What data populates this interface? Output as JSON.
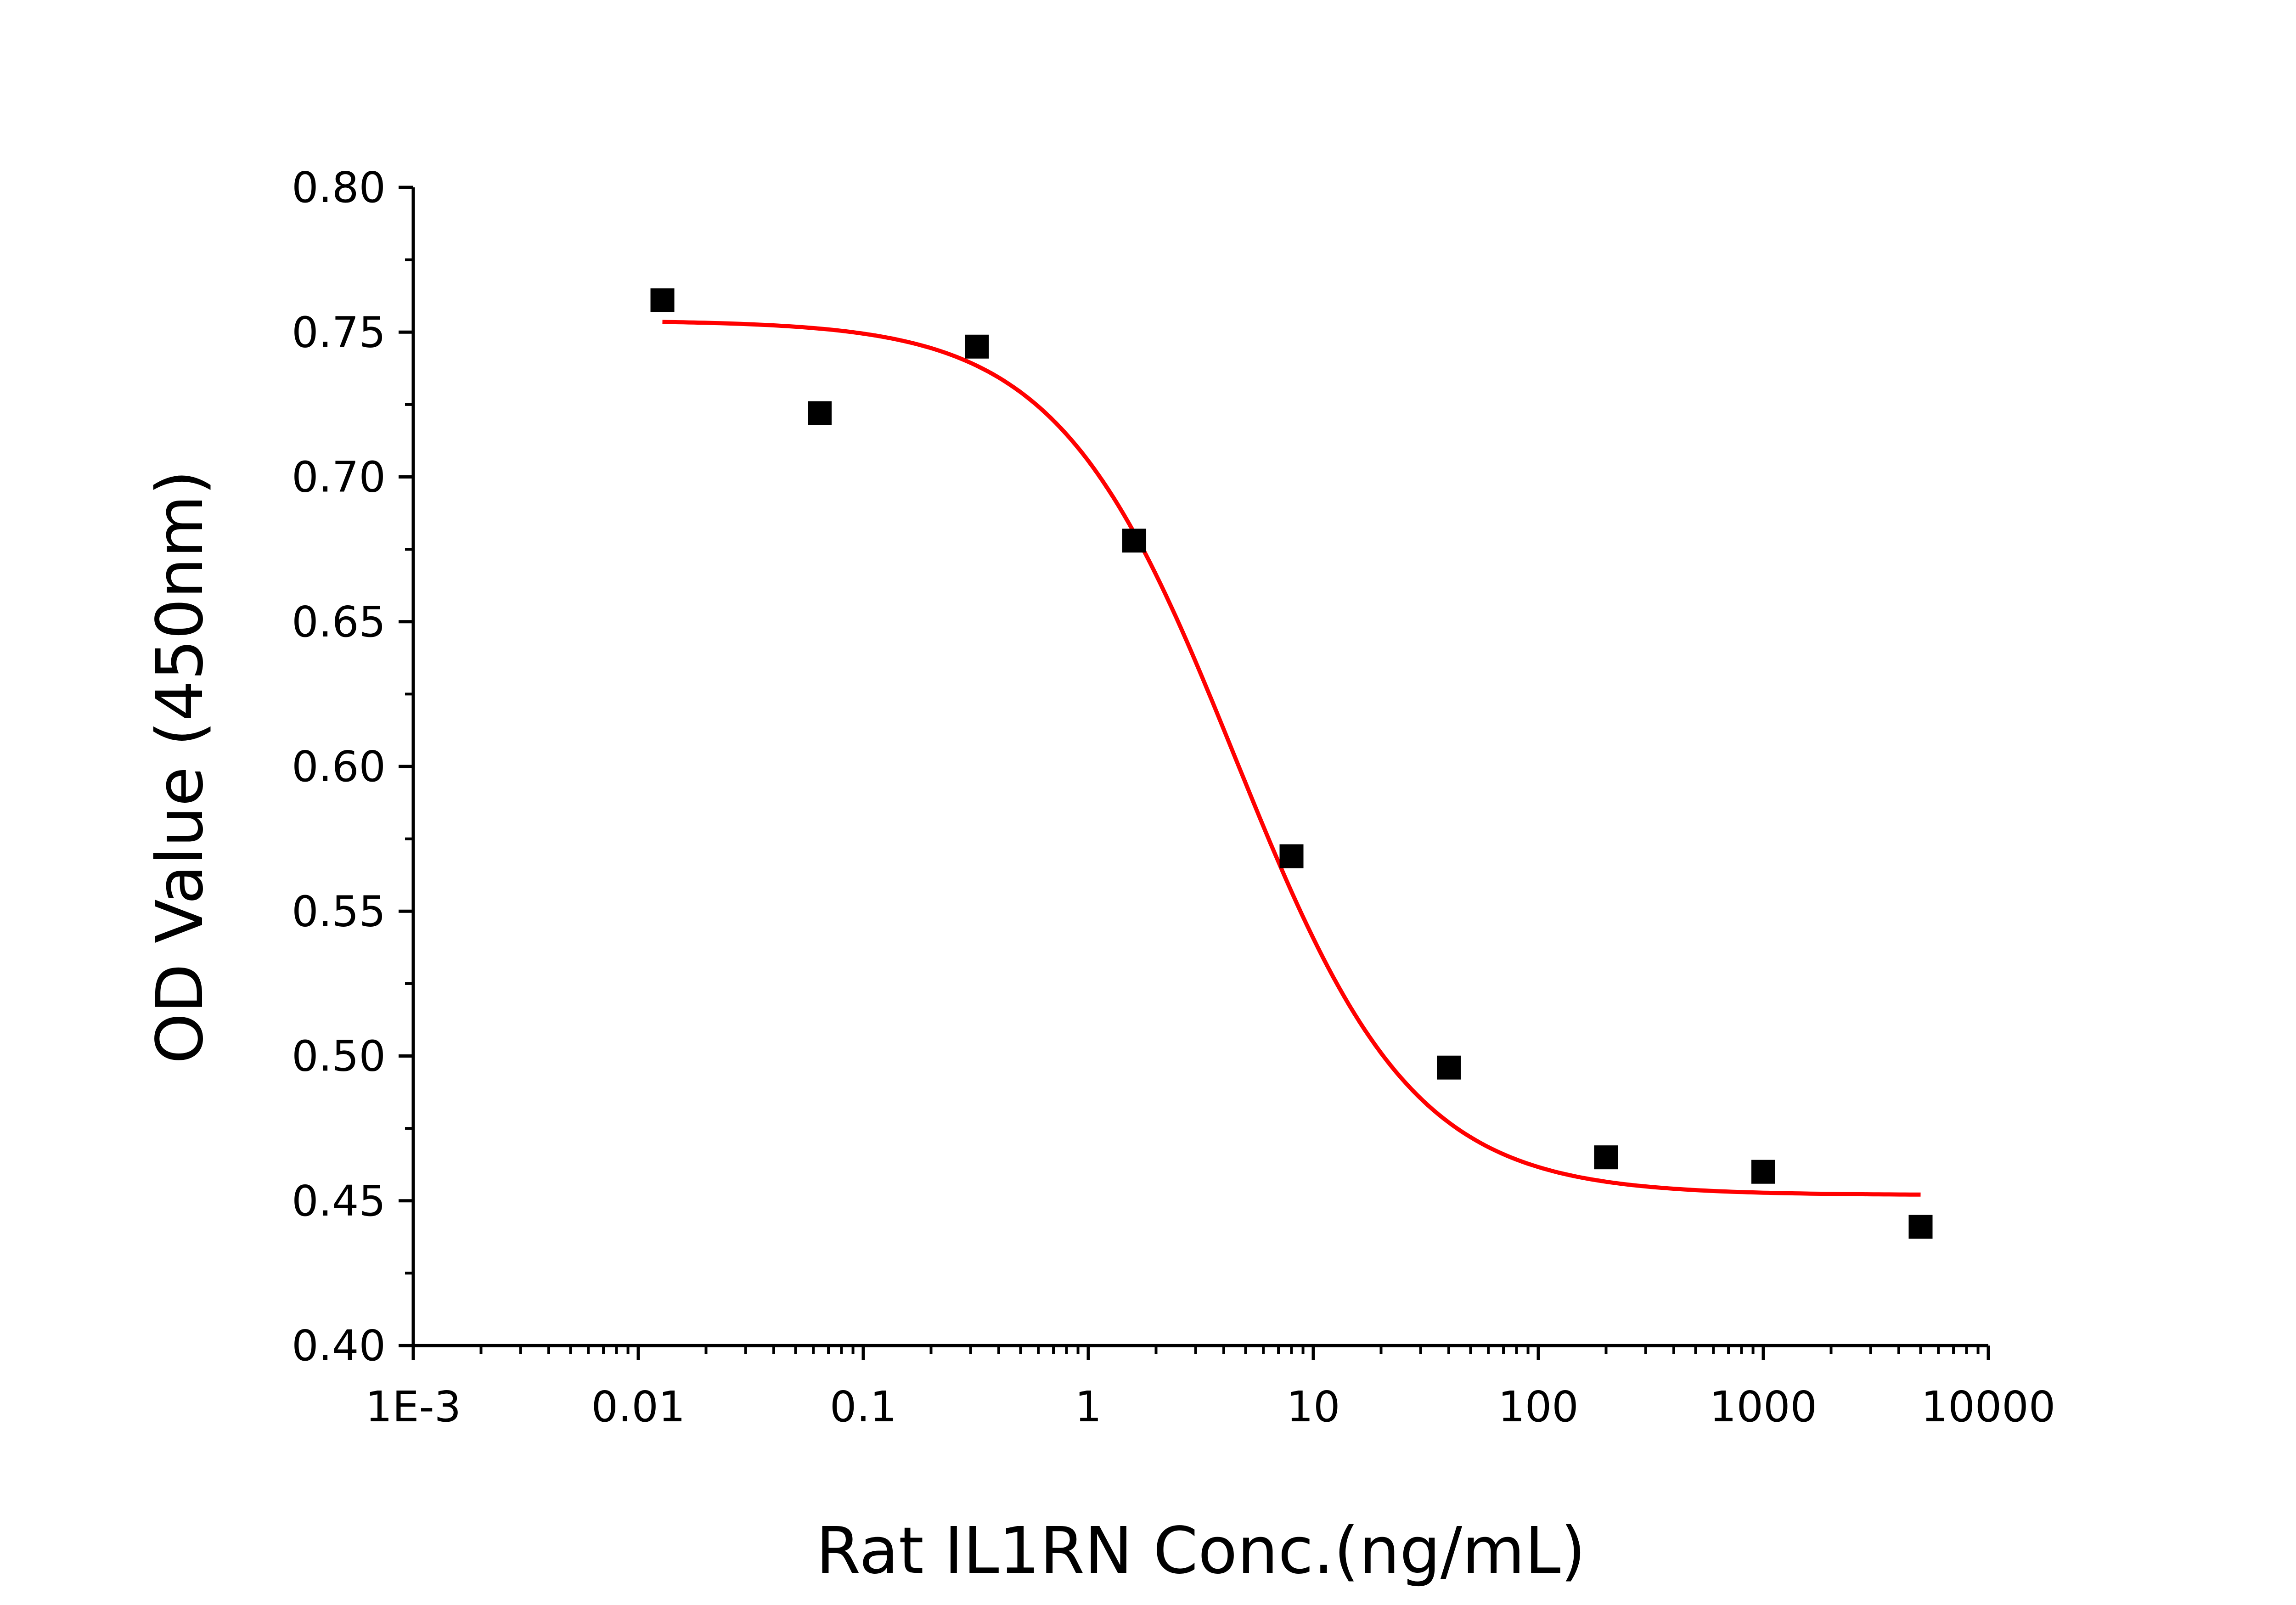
{
  "chart_data": {
    "type": "scatter",
    "title": "",
    "xlabel": "Rat IL1RN Conc.(ng/mL)",
    "ylabel": "OD Value (450nm)",
    "xscale": "log",
    "xlim": [
      0.001,
      10000
    ],
    "ylim": [
      0.4,
      0.8
    ],
    "x_ticks": [
      {
        "value": 0.001,
        "label": "1E-3"
      },
      {
        "value": 0.01,
        "label": "0.01"
      },
      {
        "value": 0.1,
        "label": "0.1"
      },
      {
        "value": 1,
        "label": "1"
      },
      {
        "value": 10,
        "label": "10"
      },
      {
        "value": 100,
        "label": "100"
      },
      {
        "value": 1000,
        "label": "1000"
      },
      {
        "value": 10000,
        "label": "10000"
      }
    ],
    "y_ticks": [
      {
        "value": 0.4,
        "label": "0.40"
      },
      {
        "value": 0.45,
        "label": "0.45"
      },
      {
        "value": 0.5,
        "label": "0.50"
      },
      {
        "value": 0.55,
        "label": "0.55"
      },
      {
        "value": 0.6,
        "label": "0.60"
      },
      {
        "value": 0.65,
        "label": "0.65"
      },
      {
        "value": 0.7,
        "label": "0.70"
      },
      {
        "value": 0.75,
        "label": "0.75"
      },
      {
        "value": 0.8,
        "label": "0.80"
      }
    ],
    "grid": false,
    "legend": "none",
    "series": [
      {
        "kind": "points",
        "marker": "square",
        "color": "#000000",
        "x": [
          0.0128,
          0.064,
          0.32,
          1.6,
          8,
          40,
          200,
          1000,
          5000
        ],
        "y": [
          0.761,
          0.722,
          0.745,
          0.678,
          0.569,
          0.496,
          0.465,
          0.46,
          0.441
        ]
      },
      {
        "kind": "fit_curve",
        "model": "four-parameter logistic",
        "color": "#ff0000",
        "x_range": [
          0.0128,
          5000
        ],
        "top": 0.754,
        "bottom": 0.452,
        "ec50": 4.5,
        "hill": 1.1
      }
    ]
  }
}
